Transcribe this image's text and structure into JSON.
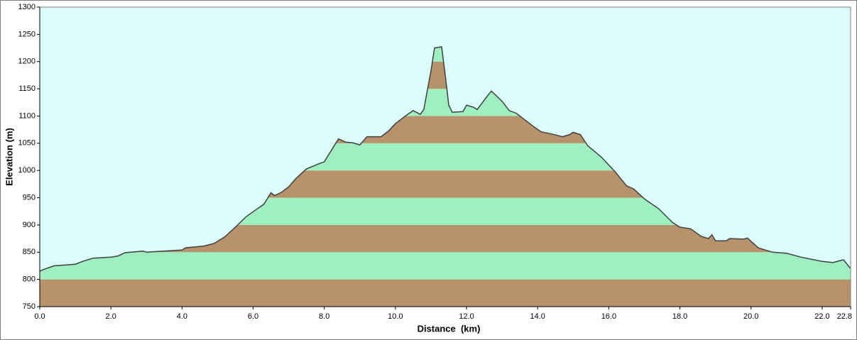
{
  "chart_data": {
    "type": "area",
    "x_label": "Distance  (km)",
    "y_label": "Elevation (m)",
    "x": [
      0.0,
      0.1,
      0.4,
      1.0,
      1.2,
      1.5,
      2.0,
      2.2,
      2.4,
      2.9,
      3.0,
      4.0,
      4.1,
      4.6,
      4.9,
      5.2,
      5.5,
      5.8,
      6.1,
      6.3,
      6.5,
      6.6,
      6.8,
      7.0,
      7.2,
      7.5,
      7.8,
      8.0,
      8.2,
      8.4,
      8.6,
      8.8,
      9.0,
      9.2,
      9.6,
      9.8,
      10.0,
      10.3,
      10.5,
      10.7,
      10.8,
      10.9,
      11.0,
      11.1,
      11.3,
      11.4,
      11.5,
      11.6,
      11.9,
      12.0,
      12.2,
      12.3,
      12.6,
      12.7,
      13.0,
      13.2,
      13.4,
      13.6,
      13.9,
      14.1,
      14.4,
      14.7,
      14.9,
      15.0,
      15.2,
      15.4,
      15.8,
      16.2,
      16.5,
      16.7,
      17.0,
      17.4,
      17.8,
      18.0,
      18.3,
      18.6,
      18.8,
      18.9,
      19.0,
      19.3,
      19.4,
      19.8,
      19.9,
      20.2,
      20.6,
      21.0,
      21.4,
      22.0,
      22.3,
      22.6,
      22.8
    ],
    "values": [
      815,
      818,
      825,
      828,
      833,
      839,
      841,
      843,
      849,
      852,
      850,
      854,
      858,
      861,
      866,
      878,
      896,
      915,
      929,
      938,
      959,
      954,
      960,
      970,
      985,
      1003,
      1011,
      1016,
      1037,
      1058,
      1052,
      1051,
      1047,
      1062,
      1062,
      1072,
      1086,
      1101,
      1110,
      1103,
      1112,
      1148,
      1183,
      1225,
      1227,
      1176,
      1120,
      1107,
      1108,
      1120,
      1116,
      1112,
      1138,
      1146,
      1127,
      1110,
      1105,
      1095,
      1080,
      1071,
      1067,
      1062,
      1066,
      1070,
      1066,
      1046,
      1024,
      996,
      972,
      966,
      948,
      930,
      904,
      896,
      893,
      879,
      875,
      882,
      871,
      871,
      875,
      874,
      876,
      858,
      850,
      848,
      841,
      833,
      831,
      836,
      820
    ],
    "xlim": [
      0,
      22.8
    ],
    "ylim": [
      750,
      1300
    ],
    "xticks": [
      {
        "value": 0,
        "label": "0.0"
      },
      {
        "value": 2,
        "label": "2.0"
      },
      {
        "value": 4,
        "label": "4.0"
      },
      {
        "value": 6,
        "label": "6.0"
      },
      {
        "value": 8,
        "label": "8.0"
      },
      {
        "value": 10,
        "label": "10.0"
      },
      {
        "value": 12,
        "label": "12.0"
      },
      {
        "value": 14,
        "label": "14.0"
      },
      {
        "value": 16,
        "label": "16.0"
      },
      {
        "value": 18,
        "label": "18.0"
      },
      {
        "value": 20,
        "label": "20.0"
      },
      {
        "value": 22,
        "label": "22.0"
      },
      {
        "value": 22.8,
        "label": "22.8"
      }
    ],
    "yticks": [
      750,
      800,
      850,
      900,
      950,
      1000,
      1050,
      1100,
      1150,
      1200,
      1250,
      1300
    ],
    "background": "#dcfdfd",
    "line_color": "#404040",
    "band_colors": [
      "#b8926a",
      "#9ff0c0"
    ]
  }
}
